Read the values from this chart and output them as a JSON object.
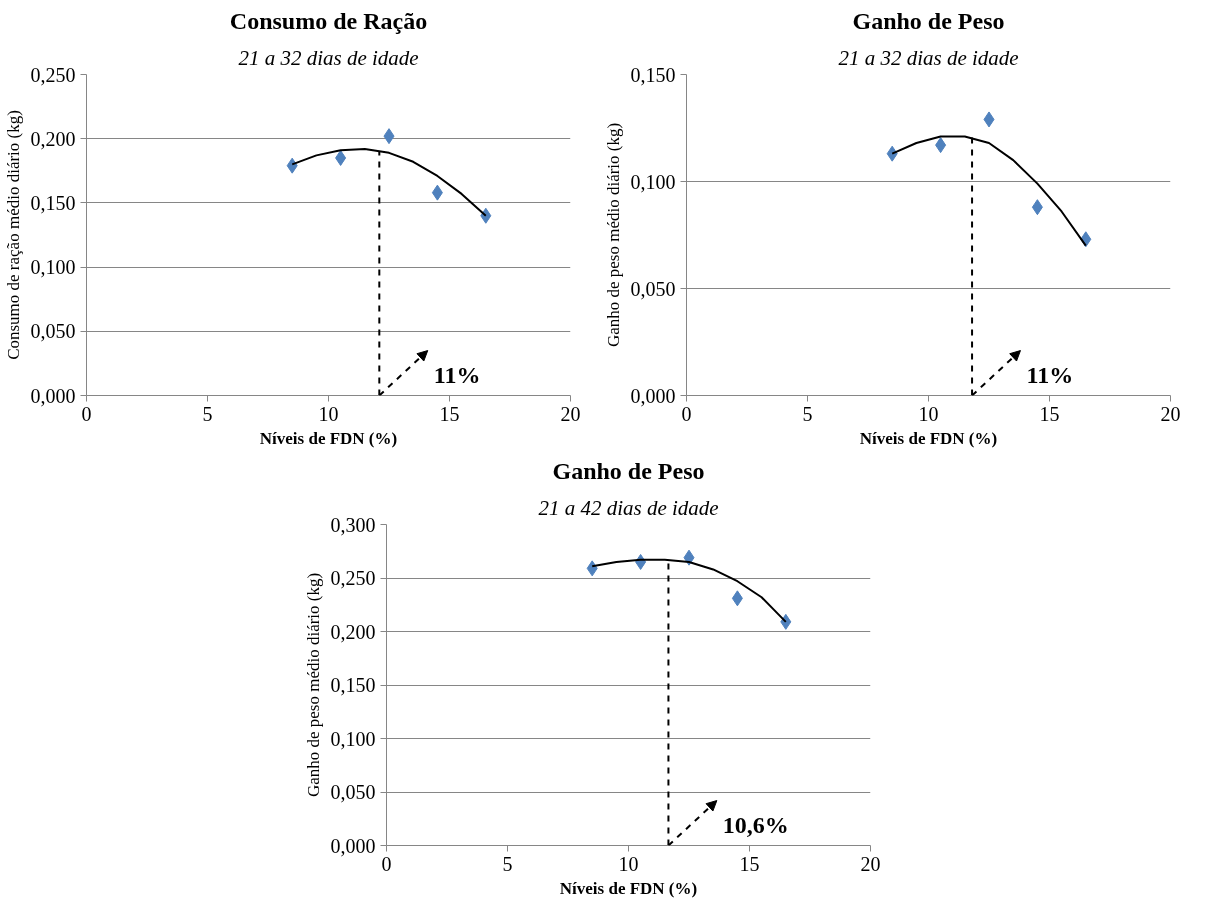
{
  "chart_data": [
    {
      "type": "scatter",
      "title": "Consumo de Ração",
      "subtitle": "21 a 32 dias de idade",
      "xlabel": "Níveis de FDN (%)",
      "ylabel": "Consumo de ração médio diário (kg)",
      "xlim": [
        0,
        20
      ],
      "xticks": [
        0,
        5,
        10,
        15,
        20
      ],
      "ylim": [
        0,
        0.25
      ],
      "yticks": [
        {
          "value": 0,
          "label": "0,000"
        },
        {
          "value": 0.05,
          "label": "0,050"
        },
        {
          "value": 0.1,
          "label": "0,100"
        },
        {
          "value": 0.15,
          "label": "0,150"
        },
        {
          "value": 0.2,
          "label": "0,200"
        },
        {
          "value": 0.25,
          "label": "0,250"
        }
      ],
      "grid": "y",
      "series": [
        {
          "marker": "diamond",
          "color": "#4f81bd",
          "x": [
            8.5,
            10.5,
            12.5,
            14.5,
            16.5
          ],
          "values": [
            0.179,
            0.185,
            0.202,
            0.158,
            0.14
          ]
        },
        {
          "type": "line",
          "marker": "none",
          "line_style": "solid",
          "color": "#000000",
          "x": [
            8.5,
            9.5,
            10.5,
            11.5,
            12.5,
            13.5,
            14.5,
            15.5,
            16.5
          ],
          "values": [
            0.18,
            0.187,
            0.191,
            0.192,
            0.189,
            0.182,
            0.171,
            0.157,
            0.14
          ]
        },
        {
          "type": "line",
          "marker": "none",
          "line_style": "dashed",
          "color": "#000000",
          "x": [
            12.1,
            12.1
          ],
          "values": [
            0,
            0.19
          ]
        }
      ],
      "annotations": [
        {
          "text": "11%",
          "x": 12.1,
          "y": 0
        }
      ]
    },
    {
      "type": "scatter",
      "title": "Ganho de Peso",
      "subtitle": "21 a 32 dias de idade",
      "xlabel": "Níveis de FDN (%)",
      "ylabel": "Ganho de peso médio diário (kg)",
      "xlim": [
        0,
        20
      ],
      "xticks": [
        0,
        5,
        10,
        15,
        20
      ],
      "ylim": [
        0,
        0.15
      ],
      "yticks": [
        {
          "value": 0,
          "label": "0,000"
        },
        {
          "value": 0.05,
          "label": "0,050"
        },
        {
          "value": 0.1,
          "label": "0,100"
        },
        {
          "value": 0.15,
          "label": "0,150"
        }
      ],
      "grid": "y",
      "series": [
        {
          "marker": "diamond",
          "color": "#4f81bd",
          "x": [
            8.5,
            10.5,
            12.5,
            14.5,
            16.5
          ],
          "values": [
            0.113,
            0.117,
            0.129,
            0.088,
            0.073
          ]
        },
        {
          "type": "line",
          "marker": "none",
          "line_style": "solid",
          "color": "#000000",
          "x": [
            8.5,
            9.5,
            10.5,
            11.5,
            12.5,
            13.5,
            14.5,
            15.5,
            16.5
          ],
          "values": [
            0.113,
            0.118,
            0.121,
            0.121,
            0.118,
            0.11,
            0.099,
            0.086,
            0.07
          ]
        },
        {
          "type": "line",
          "marker": "none",
          "line_style": "dashed",
          "color": "#000000",
          "x": [
            11.8,
            11.8
          ],
          "values": [
            0,
            0.122
          ]
        }
      ],
      "annotations": [
        {
          "text": "11%",
          "x": 11.8,
          "y": 0
        }
      ]
    },
    {
      "type": "scatter",
      "title": "Ganho de Peso",
      "subtitle": "21 a 42 dias de idade",
      "xlabel": "Níveis de FDN (%)",
      "ylabel": "Ganho de peso médio diário (kg)",
      "xlim": [
        0,
        20
      ],
      "xticks": [
        0,
        5,
        10,
        15,
        20
      ],
      "ylim": [
        0,
        0.3
      ],
      "yticks": [
        {
          "value": 0,
          "label": "0,000"
        },
        {
          "value": 0.05,
          "label": "0,050"
        },
        {
          "value": 0.1,
          "label": "0,100"
        },
        {
          "value": 0.15,
          "label": "0,150"
        },
        {
          "value": 0.2,
          "label": "0,200"
        },
        {
          "value": 0.25,
          "label": "0,250"
        },
        {
          "value": 0.3,
          "label": "0,300"
        }
      ],
      "grid": "y",
      "series": [
        {
          "marker": "diamond",
          "color": "#4f81bd",
          "x": [
            8.5,
            10.5,
            12.5,
            14.5,
            16.5
          ],
          "values": [
            0.259,
            0.265,
            0.269,
            0.231,
            0.209
          ]
        },
        {
          "type": "line",
          "marker": "none",
          "line_style": "solid",
          "color": "#000000",
          "x": [
            8.5,
            9.5,
            10.5,
            11.5,
            12.5,
            13.5,
            14.5,
            15.5,
            16.5
          ],
          "values": [
            0.261,
            0.265,
            0.267,
            0.267,
            0.265,
            0.258,
            0.247,
            0.232,
            0.209
          ]
        },
        {
          "type": "line",
          "marker": "none",
          "line_style": "dashed",
          "color": "#000000",
          "x": [
            11.65,
            11.65
          ],
          "values": [
            0,
            0.268
          ]
        }
      ],
      "annotations": [
        {
          "text": "10,6%",
          "x": 11.65,
          "y": 0
        }
      ]
    }
  ]
}
